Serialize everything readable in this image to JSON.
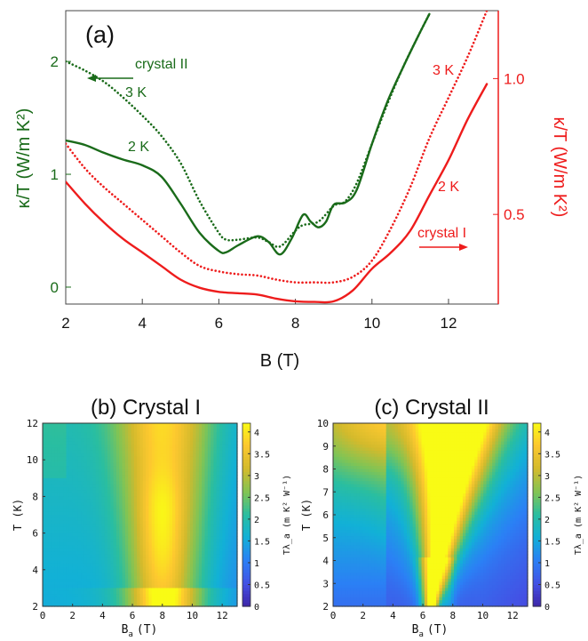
{
  "chart_data": [
    {
      "type": "line",
      "panel_label": "(a)",
      "xlabel": "B (T)",
      "ylabel_left": "κ/T (W/m K²)",
      "ylabel_right": "κ/T (W/m K²)",
      "xlim": [
        2,
        13.3
      ],
      "ylim_left": [
        -0.15,
        2.45
      ],
      "ylim_right": [
        0.17,
        1.25
      ],
      "x_ticks": [
        "2",
        "4",
        "6",
        "8",
        "10",
        "12"
      ],
      "y_ticks_left": [
        "0",
        "1",
        "2"
      ],
      "y_ticks_right": [
        "0.5",
        "1.0"
      ],
      "annotations": {
        "crystal2": "crystal II",
        "crystal1": "crystal I",
        "g3k": "3 K",
        "g2k": "2 K",
        "r3k": "3 K",
        "r2k": "2 K"
      },
      "colors": {
        "crystal2": "#1a6b1a",
        "crystal1": "#ee1c1c"
      },
      "series": [
        {
          "crystal": "crystal II",
          "axis": "left",
          "style": "dotted",
          "label": "3 K",
          "x": [
            2,
            2.5,
            3,
            3.5,
            4,
            4.5,
            5,
            5.5,
            6,
            6.2,
            6.5,
            7,
            7.3,
            7.6,
            8,
            8.2,
            8.6,
            9,
            9.3,
            9.6,
            10,
            10.4,
            10.8,
            11.2,
            11.5
          ],
          "y": [
            2.0,
            1.92,
            1.82,
            1.68,
            1.52,
            1.34,
            1.1,
            0.76,
            0.48,
            0.42,
            0.42,
            0.44,
            0.4,
            0.36,
            0.5,
            0.55,
            0.58,
            0.72,
            0.76,
            0.92,
            1.27,
            1.62,
            1.94,
            2.22,
            2.42
          ]
        },
        {
          "crystal": "crystal II",
          "axis": "left",
          "style": "solid",
          "label": "2 K",
          "x": [
            2,
            2.5,
            3,
            3.5,
            4,
            4.5,
            5,
            5.5,
            6,
            6.2,
            6.5,
            7,
            7.3,
            7.6,
            7.9,
            8.2,
            8.4,
            8.6,
            8.8,
            9,
            9.3,
            9.6,
            10,
            10.4,
            10.8,
            11.2,
            11.5
          ],
          "y": [
            1.3,
            1.26,
            1.19,
            1.13,
            1.08,
            0.98,
            0.74,
            0.48,
            0.32,
            0.31,
            0.37,
            0.45,
            0.4,
            0.29,
            0.43,
            0.64,
            0.58,
            0.53,
            0.58,
            0.73,
            0.75,
            0.86,
            1.27,
            1.64,
            1.94,
            2.22,
            2.42
          ]
        },
        {
          "crystal": "crystal I",
          "axis": "right",
          "style": "dotted",
          "label": "3 K",
          "x": [
            2,
            2.5,
            3,
            3.5,
            4,
            4.5,
            5,
            5.5,
            6,
            6.5,
            7,
            7.5,
            8,
            8.5,
            9,
            9.5,
            10,
            10.5,
            11,
            11.5,
            12,
            12.5,
            13
          ],
          "y": [
            0.76,
            0.67,
            0.6,
            0.54,
            0.48,
            0.42,
            0.36,
            0.31,
            0.29,
            0.28,
            0.275,
            0.26,
            0.25,
            0.25,
            0.25,
            0.27,
            0.33,
            0.45,
            0.6,
            0.78,
            0.93,
            1.08,
            1.25
          ]
        },
        {
          "crystal": "crystal I",
          "axis": "right",
          "style": "solid",
          "label": "2 K",
          "x": [
            2,
            2.5,
            3,
            3.5,
            4,
            4.5,
            5,
            5.5,
            6,
            6.5,
            7,
            7.5,
            8,
            8.5,
            9,
            9.5,
            10,
            10.5,
            11,
            11.5,
            12,
            12.5,
            13
          ],
          "y": [
            0.62,
            0.54,
            0.47,
            0.41,
            0.36,
            0.31,
            0.26,
            0.23,
            0.215,
            0.21,
            0.205,
            0.19,
            0.18,
            0.178,
            0.18,
            0.22,
            0.3,
            0.36,
            0.44,
            0.57,
            0.7,
            0.85,
            0.98
          ]
        }
      ]
    },
    {
      "type": "heatmap",
      "title": "(b) Crystal I",
      "xlabel": "B",
      "xlabel_sub": "a",
      "xlabel_unit": "(T)",
      "ylabel": "T (K)",
      "colorbar_label": "Tλ_a (m K² W⁻¹)",
      "xlim": [
        0,
        13
      ],
      "ylim": [
        2,
        12
      ],
      "clim": [
        0,
        4.2
      ],
      "x_ticks": [
        "0",
        "2",
        "4",
        "6",
        "8",
        "10",
        "12"
      ],
      "y_ticks": [
        "2",
        "4",
        "6",
        "8",
        "10",
        "12"
      ],
      "colorbar_ticks": [
        "0",
        "0.5",
        "1",
        "1.5",
        "2",
        "2.5",
        "3",
        "3.5",
        "4"
      ],
      "features": "broad maximum (~3.3–3.7) centred near Ba = 8 T across all T, strongest (~4.2) at T = 2–3 K; background ~1.3–2.3"
    },
    {
      "type": "heatmap",
      "title": "(c) Crystal II",
      "xlabel": "B",
      "xlabel_sub": "a",
      "xlabel_unit": "(T)",
      "ylabel": "T (K)",
      "colorbar_label": "Tλ_a (m K² W⁻¹)",
      "xlim": [
        0,
        13
      ],
      "ylim": [
        2,
        10
      ],
      "clim": [
        0,
        4.2
      ],
      "x_ticks": [
        "0",
        "2",
        "4",
        "6",
        "8",
        "10",
        "12"
      ],
      "y_ticks": [
        "2",
        "3",
        "4",
        "5",
        "6",
        "7",
        "8",
        "9",
        "10"
      ],
      "colorbar_ticks": [
        "0",
        "0.5",
        "1",
        "1.5",
        "2",
        "2.5",
        "3",
        "3.5",
        "4"
      ],
      "features": "V-shaped maximum (~4) spanning 6–9 T at high T narrowing to ~7 T below 4 K; low values (~0.5) at low field and low T"
    }
  ]
}
